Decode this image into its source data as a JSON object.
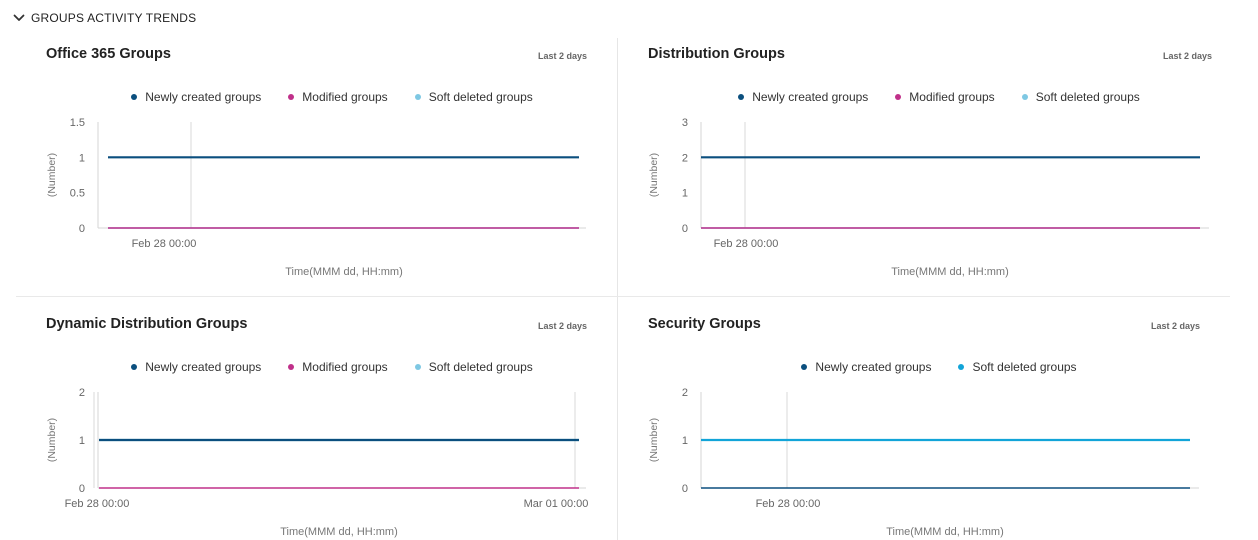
{
  "section": {
    "title": "GROUPS ACTIVITY TRENDS",
    "icon": "chevron-down-icon"
  },
  "panels": [
    {
      "title": "Office 365 Groups",
      "range": "Last 2 days",
      "legend": [
        {
          "name": "Newly created groups",
          "color": "#0b4f7e"
        },
        {
          "name": "Modified groups",
          "color": "#c0308a"
        },
        {
          "name": "Soft deleted groups",
          "color": "#7ec8e3"
        }
      ],
      "y_axis_label": "(Number)",
      "x_axis_label": "Time(MMM dd, HH:mm)",
      "x_tick_labels": [
        "Feb 28 00:00"
      ],
      "y_tick_labels": [
        "0",
        "0.5",
        "1",
        "1.5"
      ]
    },
    {
      "title": "Distribution Groups",
      "range": "Last 2 days",
      "legend": [
        {
          "name": "Newly created groups",
          "color": "#0b4f7e"
        },
        {
          "name": "Modified groups",
          "color": "#c0308a"
        },
        {
          "name": "Soft deleted groups",
          "color": "#7ec8e3"
        }
      ],
      "y_axis_label": "(Number)",
      "x_axis_label": "Time(MMM dd, HH:mm)",
      "x_tick_labels": [
        "Feb 28 00:00"
      ],
      "y_tick_labels": [
        "0",
        "1",
        "2",
        "3"
      ]
    },
    {
      "title": "Dynamic Distribution Groups",
      "range": "Last 2 days",
      "legend": [
        {
          "name": "Newly created groups",
          "color": "#0b4f7e"
        },
        {
          "name": "Modified groups",
          "color": "#c0308a"
        },
        {
          "name": "Soft deleted groups",
          "color": "#7ec8e3"
        }
      ],
      "y_axis_label": "(Number)",
      "x_axis_label": "Time(MMM dd, HH:mm)",
      "x_tick_labels": [
        "Feb 28 00:00",
        "Mar 01 00:00"
      ],
      "y_tick_labels": [
        "0",
        "1",
        "2"
      ]
    },
    {
      "title": "Security Groups",
      "range": "Last 2 days",
      "legend": [
        {
          "name": "Newly created groups",
          "color": "#0b4f7e"
        },
        {
          "name": "Soft deleted groups",
          "color": "#12a4d8"
        }
      ],
      "y_axis_label": "(Number)",
      "x_axis_label": "Time(MMM dd, HH:mm)",
      "x_tick_labels": [
        "Feb 28 00:00"
      ],
      "y_tick_labels": [
        "0",
        "1",
        "2"
      ]
    }
  ],
  "chart_data": [
    {
      "type": "line",
      "title": "Office 365 Groups",
      "xlabel": "Time(MMM dd, HH:mm)",
      "ylabel": "(Number)",
      "ylim": [
        0,
        1.5
      ],
      "x": [
        "Feb 28 00:00"
      ],
      "series": [
        {
          "name": "Newly created groups",
          "values": [
            1
          ],
          "color": "#0b4f7e"
        },
        {
          "name": "Modified groups",
          "values": [
            0
          ],
          "color": "#c0308a"
        },
        {
          "name": "Soft deleted groups",
          "values": [
            0
          ],
          "color": "#7ec8e3"
        }
      ]
    },
    {
      "type": "line",
      "title": "Distribution Groups",
      "xlabel": "Time(MMM dd, HH:mm)",
      "ylabel": "(Number)",
      "ylim": [
        0,
        3
      ],
      "x": [
        "Feb 28 00:00"
      ],
      "series": [
        {
          "name": "Newly created groups",
          "values": [
            2
          ],
          "color": "#0b4f7e"
        },
        {
          "name": "Modified groups",
          "values": [
            0
          ],
          "color": "#c0308a"
        },
        {
          "name": "Soft deleted groups",
          "values": [
            0
          ],
          "color": "#7ec8e3"
        }
      ]
    },
    {
      "type": "line",
      "title": "Dynamic Distribution Groups",
      "xlabel": "Time(MMM dd, HH:mm)",
      "ylabel": "(Number)",
      "ylim": [
        0,
        2
      ],
      "x": [
        "Feb 28 00:00",
        "Mar 01 00:00"
      ],
      "series": [
        {
          "name": "Newly created groups",
          "values": [
            1,
            1
          ],
          "color": "#0b4f7e"
        },
        {
          "name": "Modified groups",
          "values": [
            0,
            0
          ],
          "color": "#c0308a"
        },
        {
          "name": "Soft deleted groups",
          "values": [
            1,
            1
          ],
          "color": "#7ec8e3"
        }
      ]
    },
    {
      "type": "line",
      "title": "Security Groups",
      "xlabel": "Time(MMM dd, HH:mm)",
      "ylabel": "(Number)",
      "ylim": [
        0,
        2
      ],
      "x": [
        "Feb 28 00:00"
      ],
      "series": [
        {
          "name": "Newly created groups",
          "values": [
            0
          ],
          "color": "#0b4f7e"
        },
        {
          "name": "Soft deleted groups",
          "values": [
            1
          ],
          "color": "#12a4d8"
        }
      ]
    }
  ]
}
